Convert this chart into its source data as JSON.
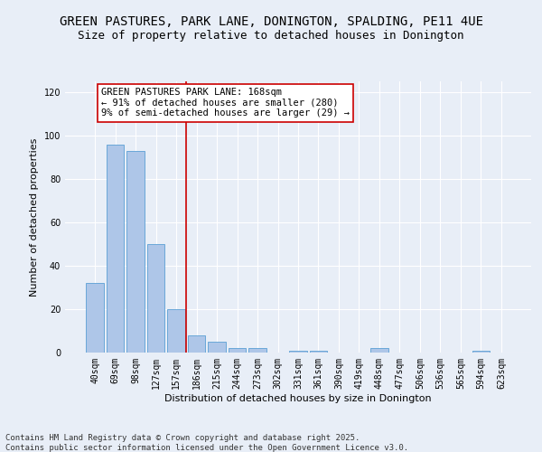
{
  "title": "GREEN PASTURES, PARK LANE, DONINGTON, SPALDING, PE11 4UE",
  "subtitle": "Size of property relative to detached houses in Donington",
  "xlabel": "Distribution of detached houses by size in Donington",
  "ylabel": "Number of detached properties",
  "categories": [
    "40sqm",
    "69sqm",
    "98sqm",
    "127sqm",
    "157sqm",
    "186sqm",
    "215sqm",
    "244sqm",
    "273sqm",
    "302sqm",
    "331sqm",
    "361sqm",
    "390sqm",
    "419sqm",
    "448sqm",
    "477sqm",
    "506sqm",
    "536sqm",
    "565sqm",
    "594sqm",
    "623sqm"
  ],
  "values": [
    32,
    96,
    93,
    50,
    20,
    8,
    5,
    2,
    2,
    0,
    1,
    1,
    0,
    0,
    2,
    0,
    0,
    0,
    0,
    1,
    0
  ],
  "bar_color": "#aec6e8",
  "bar_edge_color": "#5a9fd4",
  "vline_x": 4.5,
  "vline_color": "#cc0000",
  "annotation_text": "GREEN PASTURES PARK LANE: 168sqm\n← 91% of detached houses are smaller (280)\n9% of semi-detached houses are larger (29) →",
  "annotation_box_color": "#ffffff",
  "annotation_box_edge": "#cc0000",
  "ylim": [
    0,
    125
  ],
  "yticks": [
    0,
    20,
    40,
    60,
    80,
    100,
    120
  ],
  "background_color": "#e8eef7",
  "footer_line1": "Contains HM Land Registry data © Crown copyright and database right 2025.",
  "footer_line2": "Contains public sector information licensed under the Open Government Licence v3.0.",
  "title_fontsize": 10,
  "subtitle_fontsize": 9,
  "axis_label_fontsize": 8,
  "tick_fontsize": 7,
  "annotation_fontsize": 7.5,
  "footer_fontsize": 6.5
}
